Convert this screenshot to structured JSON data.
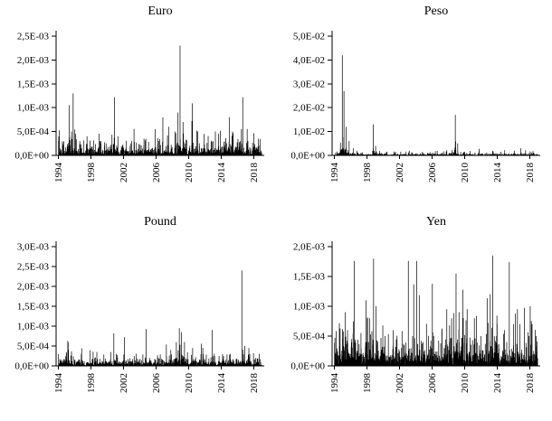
{
  "figure": {
    "background": "#ffffff",
    "series_color": "#000000",
    "axis_color": "#000000",
    "text_color": "#000000"
  },
  "chart_data": [
    {
      "type": "line",
      "title": "Euro",
      "xlabel": "",
      "ylabel": "",
      "grid": false,
      "legend": null,
      "x_range": [
        1994,
        2019
      ],
      "x_axis_range": [
        1993.7,
        2019.3
      ],
      "ylim": [
        0,
        0.0025
      ],
      "x_ticks": [
        {
          "value": 1994,
          "label": "1994"
        },
        {
          "value": 1998,
          "label": "1998"
        },
        {
          "value": 2002,
          "label": "2002"
        },
        {
          "value": 2006,
          "label": "2006"
        },
        {
          "value": 2010,
          "label": "2010"
        },
        {
          "value": 2014,
          "label": "2014"
        },
        {
          "value": 2018,
          "label": "2018"
        }
      ],
      "y_ticks": [
        {
          "value": 0,
          "label": "0,0E+00"
        },
        {
          "value": 0.0005,
          "label": "5,0E-04"
        },
        {
          "value": 0.001,
          "label": "1,0E-03"
        },
        {
          "value": 0.0015,
          "label": "1,5E-03"
        },
        {
          "value": 0.002,
          "label": "2,0E-03"
        },
        {
          "value": 0.0025,
          "label": "2,5E-03"
        }
      ],
      "noise": {
        "seed": 1,
        "n": 1100,
        "base": 0.0001,
        "burst_prob": 0.05,
        "burst_scale": 2
      },
      "spikes": [
        [
          1995.3,
          0.00105
        ],
        [
          1995.6,
          0.0005
        ],
        [
          1996.1,
          0.00045
        ],
        [
          1997.5,
          0.0004
        ],
        [
          1999.2,
          0.0003
        ],
        [
          2000.9,
          0.00122
        ],
        [
          2001.3,
          0.0004
        ],
        [
          2003.0,
          0.0003
        ],
        [
          2004.5,
          0.00035
        ],
        [
          2006.3,
          0.0003
        ],
        [
          2008.3,
          0.0005
        ],
        [
          2008.7,
          0.0009
        ],
        [
          2008.95,
          0.0023
        ],
        [
          2009.3,
          0.0007
        ],
        [
          2010.4,
          0.00072
        ],
        [
          2011.1,
          0.0005
        ],
        [
          2011.9,
          0.00045
        ],
        [
          2013.0,
          0.0003
        ],
        [
          2015.0,
          0.0008
        ],
        [
          2015.4,
          0.0005
        ],
        [
          2016.5,
          0.00055
        ],
        [
          2017.3,
          0.0003
        ],
        [
          2018.6,
          0.00035
        ]
      ]
    },
    {
      "type": "line",
      "title": "Peso",
      "xlabel": "",
      "ylabel": "",
      "grid": false,
      "legend": null,
      "x_range": [
        1994,
        2019
      ],
      "x_axis_range": [
        1993.7,
        2019.3
      ],
      "ylim": [
        0,
        0.05
      ],
      "x_ticks": [
        {
          "value": 1994,
          "label": "1994"
        },
        {
          "value": 1998,
          "label": "1998"
        },
        {
          "value": 2002,
          "label": "2002"
        },
        {
          "value": 2006,
          "label": "2006"
        },
        {
          "value": 2010,
          "label": "2010"
        },
        {
          "value": 2014,
          "label": "2014"
        },
        {
          "value": 2018,
          "label": "2018"
        }
      ],
      "y_ticks": [
        {
          "value": 0,
          "label": "0,0E+00"
        },
        {
          "value": 0.01,
          "label": "1,0E-02"
        },
        {
          "value": 0.02,
          "label": "2,0E-02"
        },
        {
          "value": 0.03,
          "label": "3,0E-02"
        },
        {
          "value": 0.04,
          "label": "4,0E-02"
        },
        {
          "value": 0.05,
          "label": "5,0E-02"
        }
      ],
      "noise": {
        "seed": 2,
        "n": 1100,
        "base": 0.00035,
        "burst_prob": 0.03,
        "burst_scale": 2
      },
      "spikes": [
        [
          1994.95,
          0.042
        ],
        [
          1995.15,
          0.027
        ],
        [
          1995.4,
          0.012
        ],
        [
          1995.8,
          0.006
        ],
        [
          1996.3,
          0.003
        ],
        [
          1998.75,
          0.013
        ],
        [
          1999.05,
          0.004
        ],
        [
          2001.5,
          0.0015
        ],
        [
          2003.2,
          0.002
        ],
        [
          2004.8,
          0.0015
        ],
        [
          2006.4,
          0.0018
        ],
        [
          2008.85,
          0.017
        ],
        [
          2009.15,
          0.005
        ],
        [
          2010.0,
          0.0015
        ],
        [
          2011.8,
          0.0028
        ],
        [
          2013.5,
          0.0015
        ],
        [
          2016.1,
          0.002
        ],
        [
          2016.9,
          0.003
        ],
        [
          2017.5,
          0.0022
        ],
        [
          2018.4,
          0.0018
        ]
      ]
    },
    {
      "type": "line",
      "title": "Pound",
      "xlabel": "",
      "ylabel": "",
      "grid": false,
      "legend": null,
      "x_range": [
        1994,
        2019
      ],
      "x_axis_range": [
        1993.7,
        2019.3
      ],
      "ylim": [
        0,
        0.003
      ],
      "x_ticks": [
        {
          "value": 1994,
          "label": "1994"
        },
        {
          "value": 1998,
          "label": "1998"
        },
        {
          "value": 2002,
          "label": "2002"
        },
        {
          "value": 2006,
          "label": "2006"
        },
        {
          "value": 2010,
          "label": "2010"
        },
        {
          "value": 2014,
          "label": "2014"
        },
        {
          "value": 2018,
          "label": "2018"
        }
      ],
      "y_ticks": [
        {
          "value": 0,
          "label": "0,0E+00"
        },
        {
          "value": 0.0005,
          "label": "5,0E-04"
        },
        {
          "value": 0.001,
          "label": "1,0E-03"
        },
        {
          "value": 0.0015,
          "label": "1,5E-03"
        },
        {
          "value": 0.002,
          "label": "2,0E-03"
        },
        {
          "value": 0.0025,
          "label": "2,5E-03"
        },
        {
          "value": 0.003,
          "label": "3,0E-03"
        }
      ],
      "noise": {
        "seed": 3,
        "n": 1100,
        "base": 8e-05,
        "burst_prob": 0.05,
        "burst_scale": 2
      },
      "spikes": [
        [
          1996.8,
          0.0003
        ],
        [
          1998.7,
          0.00035
        ],
        [
          2000.8,
          0.00082
        ],
        [
          2001.1,
          0.0003
        ],
        [
          2003.3,
          0.00025
        ],
        [
          2005.2,
          0.0002
        ],
        [
          2007.8,
          0.0004
        ],
        [
          2008.5,
          0.0006
        ],
        [
          2008.85,
          0.00095
        ],
        [
          2009.1,
          0.00085
        ],
        [
          2009.5,
          0.0006
        ],
        [
          2010.5,
          0.00045
        ],
        [
          2011.8,
          0.0003
        ],
        [
          2013.2,
          0.00025
        ],
        [
          2015.1,
          0.0003
        ],
        [
          2016.55,
          0.0024
        ],
        [
          2016.9,
          0.0005
        ],
        [
          2017.4,
          0.00045
        ],
        [
          2018.7,
          0.0003
        ]
      ]
    },
    {
      "type": "line",
      "title": "Yen",
      "xlabel": "",
      "ylabel": "",
      "grid": false,
      "legend": null,
      "x_range": [
        1994,
        2019
      ],
      "x_axis_range": [
        1993.7,
        2019.3
      ],
      "ylim": [
        0,
        0.002
      ],
      "x_ticks": [
        {
          "value": 1994,
          "label": "1994"
        },
        {
          "value": 1998,
          "label": "1998"
        },
        {
          "value": 2002,
          "label": "2002"
        },
        {
          "value": 2006,
          "label": "2006"
        },
        {
          "value": 2010,
          "label": "2010"
        },
        {
          "value": 2014,
          "label": "2014"
        },
        {
          "value": 2018,
          "label": "2018"
        }
      ],
      "y_ticks": [
        {
          "value": 0,
          "label": "0,0E+00"
        },
        {
          "value": 0.0005,
          "label": "5,0E-04"
        },
        {
          "value": 0.001,
          "label": "1,0E-03"
        },
        {
          "value": 0.0015,
          "label": "1,5E-03"
        },
        {
          "value": 0.002,
          "label": "2,0E-03"
        }
      ],
      "noise": {
        "seed": 4,
        "n": 1100,
        "base": 0.00015,
        "burst_prob": 0.1,
        "burst_scale": 2.5
      },
      "spikes": [
        [
          1995.3,
          0.0009
        ],
        [
          1995.6,
          0.0006
        ],
        [
          1996.5,
          0.0004
        ],
        [
          1997.9,
          0.0011
        ],
        [
          1998.3,
          0.0008
        ],
        [
          1998.8,
          0.0018
        ],
        [
          1999.1,
          0.001
        ],
        [
          2000.2,
          0.0005
        ],
        [
          2001.2,
          0.0006
        ],
        [
          2002.3,
          0.0005
        ],
        [
          2003.6,
          0.0005
        ],
        [
          2004.9,
          0.0004
        ],
        [
          2006.2,
          0.0005
        ],
        [
          2007.2,
          0.0006
        ],
        [
          2007.8,
          0.00095
        ],
        [
          2008.4,
          0.0008
        ],
        [
          2008.95,
          0.00155
        ],
        [
          2009.3,
          0.0009
        ],
        [
          2010.3,
          0.00095
        ],
        [
          2011.2,
          0.0008
        ],
        [
          2012.0,
          0.0005
        ],
        [
          2013.15,
          0.0012
        ],
        [
          2013.45,
          0.00185
        ],
        [
          2014.0,
          0.0007
        ],
        [
          2014.9,
          0.0006
        ],
        [
          2016.0,
          0.0007
        ],
        [
          2016.5,
          0.00095
        ],
        [
          2016.8,
          0.0007
        ],
        [
          2017.9,
          0.0005
        ],
        [
          2018.3,
          0.0007
        ],
        [
          2018.8,
          0.0005
        ]
      ]
    }
  ]
}
